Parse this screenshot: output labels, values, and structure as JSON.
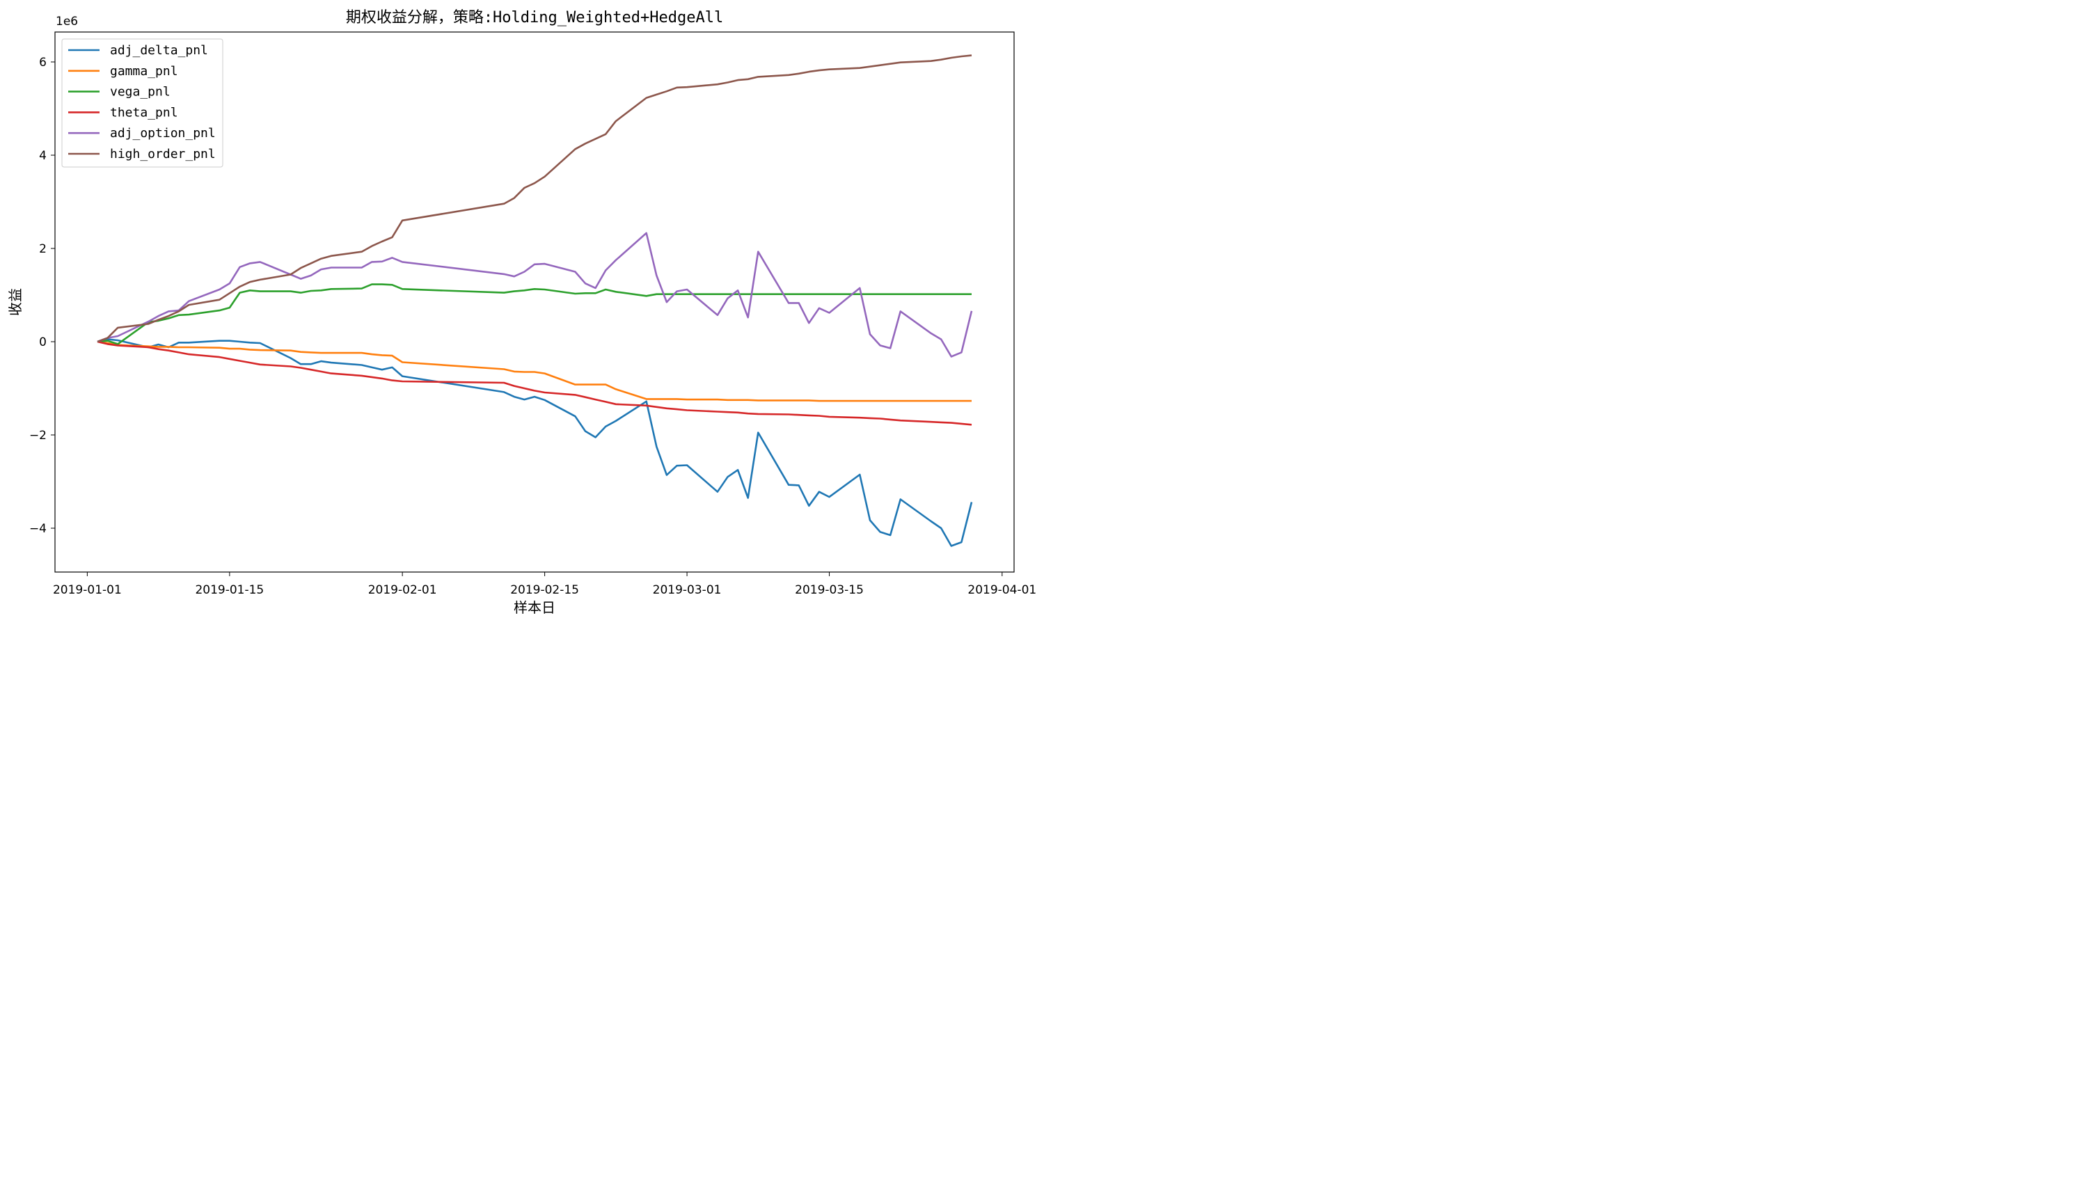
{
  "chart_data": {
    "type": "line",
    "title": "期权收益分解，策略:Holding_Weighted+HedgeAll",
    "xlabel": "样本日",
    "ylabel": "收益",
    "y_scale_label": "1e6",
    "xlim": [
      "2019-01-01",
      "2019-04-01"
    ],
    "ylim": [
      -4.9,
      6.6
    ],
    "x_ticks": [
      "2019-01-01",
      "2019-01-15",
      "2019-02-01",
      "2019-02-15",
      "2019-03-01",
      "2019-03-15",
      "2019-04-01"
    ],
    "y_ticks": [
      6,
      4,
      2,
      0,
      -2,
      -4
    ],
    "y_tick_labels": [
      "6",
      "4",
      "2",
      "0",
      "−2",
      "−4"
    ],
    "legend_position": "top-left",
    "grid": false,
    "x": [
      "2019-01-02",
      "2019-01-03",
      "2019-01-04",
      "2019-01-07",
      "2019-01-08",
      "2019-01-09",
      "2019-01-10",
      "2019-01-11",
      "2019-01-14",
      "2019-01-15",
      "2019-01-16",
      "2019-01-17",
      "2019-01-18",
      "2019-01-21",
      "2019-01-22",
      "2019-01-23",
      "2019-01-24",
      "2019-01-25",
      "2019-01-28",
      "2019-01-29",
      "2019-01-30",
      "2019-01-31",
      "2019-02-01",
      "2019-02-11",
      "2019-02-12",
      "2019-02-13",
      "2019-02-14",
      "2019-02-15",
      "2019-02-18",
      "2019-02-19",
      "2019-02-20",
      "2019-02-21",
      "2019-02-22",
      "2019-02-25",
      "2019-02-26",
      "2019-02-27",
      "2019-02-28",
      "2019-03-01",
      "2019-03-04",
      "2019-03-05",
      "2019-03-06",
      "2019-03-07",
      "2019-03-08",
      "2019-03-11",
      "2019-03-12",
      "2019-03-13",
      "2019-03-14",
      "2019-03-15",
      "2019-03-18",
      "2019-03-19",
      "2019-03-20",
      "2019-03-21",
      "2019-03-22",
      "2019-03-25",
      "2019-03-26",
      "2019-03-27",
      "2019-03-28",
      "2019-03-29"
    ],
    "series": [
      {
        "name": "adj_delta_pnl",
        "color": "#1f77b4",
        "values": [
          0,
          0.05,
          0.03,
          -0.12,
          -0.06,
          -0.12,
          -0.02,
          -0.02,
          0.02,
          0.02,
          0.0,
          -0.02,
          -0.03,
          -0.35,
          -0.48,
          -0.48,
          -0.42,
          -0.45,
          -0.5,
          -0.55,
          -0.6,
          -0.55,
          -0.74,
          -1.08,
          -1.18,
          -1.24,
          -1.18,
          -1.25,
          -1.6,
          -1.92,
          -2.05,
          -1.82,
          -1.7,
          -1.28,
          -2.25,
          -2.86,
          -2.66,
          -2.65,
          -3.22,
          -2.9,
          -2.75,
          -3.35,
          -1.95,
          -3.07,
          -3.08,
          -3.52,
          -3.22,
          -3.33,
          -2.85,
          -3.83,
          -4.08,
          -4.15,
          -3.38,
          -3.85,
          -4.0,
          -4.38,
          -4.3,
          -3.44
        ]
      },
      {
        "name": "gamma_pnl",
        "color": "#ff7f0e",
        "values": [
          0,
          -0.03,
          -0.07,
          -0.1,
          -0.11,
          -0.11,
          -0.12,
          -0.12,
          -0.13,
          -0.15,
          -0.15,
          -0.17,
          -0.18,
          -0.19,
          -0.22,
          -0.23,
          -0.24,
          -0.24,
          -0.24,
          -0.27,
          -0.29,
          -0.3,
          -0.44,
          -0.59,
          -0.64,
          -0.65,
          -0.65,
          -0.68,
          -0.92,
          -0.92,
          -0.92,
          -0.92,
          -1.02,
          -1.23,
          -1.23,
          -1.23,
          -1.23,
          -1.24,
          -1.24,
          -1.25,
          -1.25,
          -1.25,
          -1.26,
          -1.26,
          -1.26,
          -1.26,
          -1.27,
          -1.27,
          -1.27,
          -1.27,
          -1.27,
          -1.27,
          -1.27,
          -1.27,
          -1.27,
          -1.27,
          -1.27,
          -1.27
        ]
      },
      {
        "name": "vega_pnl",
        "color": "#2ca02c",
        "values": [
          0,
          0.02,
          -0.05,
          0.42,
          0.45,
          0.5,
          0.57,
          0.58,
          0.67,
          0.73,
          1.05,
          1.1,
          1.08,
          1.08,
          1.05,
          1.09,
          1.1,
          1.13,
          1.14,
          1.23,
          1.23,
          1.22,
          1.13,
          1.05,
          1.08,
          1.1,
          1.13,
          1.12,
          1.03,
          1.04,
          1.04,
          1.12,
          1.07,
          0.98,
          1.02,
          1.02,
          1.02,
          1.02,
          1.02,
          1.02,
          1.02,
          1.02,
          1.02,
          1.02,
          1.02,
          1.02,
          1.02,
          1.02,
          1.02,
          1.02,
          1.02,
          1.02,
          1.02,
          1.02,
          1.02,
          1.02,
          1.02,
          1.02
        ]
      },
      {
        "name": "theta_pnl",
        "color": "#d62728",
        "values": [
          0,
          -0.05,
          -0.08,
          -0.12,
          -0.16,
          -0.19,
          -0.23,
          -0.27,
          -0.33,
          -0.37,
          -0.41,
          -0.45,
          -0.49,
          -0.53,
          -0.56,
          -0.6,
          -0.64,
          -0.68,
          -0.73,
          -0.76,
          -0.79,
          -0.83,
          -0.85,
          -0.88,
          -0.95,
          -1.0,
          -1.05,
          -1.09,
          -1.14,
          -1.19,
          -1.24,
          -1.29,
          -1.34,
          -1.37,
          -1.4,
          -1.43,
          -1.45,
          -1.47,
          -1.5,
          -1.51,
          -1.52,
          -1.54,
          -1.55,
          -1.56,
          -1.57,
          -1.58,
          -1.59,
          -1.61,
          -1.63,
          -1.64,
          -1.65,
          -1.67,
          -1.69,
          -1.72,
          -1.73,
          -1.74,
          -1.76,
          -1.78
        ]
      },
      {
        "name": "adj_option_pnl",
        "color": "#9467bd",
        "values": [
          0,
          0.08,
          0.12,
          0.43,
          0.55,
          0.65,
          0.67,
          0.87,
          1.12,
          1.25,
          1.6,
          1.68,
          1.71,
          1.44,
          1.35,
          1.42,
          1.55,
          1.59,
          1.59,
          1.71,
          1.72,
          1.8,
          1.71,
          1.45,
          1.4,
          1.5,
          1.66,
          1.67,
          1.5,
          1.25,
          1.15,
          1.53,
          1.75,
          2.33,
          1.42,
          0.85,
          1.08,
          1.12,
          0.57,
          0.93,
          1.1,
          0.52,
          1.93,
          0.83,
          0.83,
          0.4,
          0.72,
          0.62,
          1.15,
          0.16,
          -0.08,
          -0.14,
          0.65,
          0.18,
          0.05,
          -0.32,
          -0.23,
          0.66
        ]
      },
      {
        "name": "high_order_pnl",
        "color": "#8c564b",
        "values": [
          0,
          0.08,
          0.3,
          0.38,
          0.47,
          0.55,
          0.65,
          0.79,
          0.9,
          1.04,
          1.18,
          1.28,
          1.33,
          1.44,
          1.58,
          1.68,
          1.78,
          1.84,
          1.93,
          2.05,
          2.15,
          2.24,
          2.6,
          2.96,
          3.08,
          3.3,
          3.4,
          3.54,
          4.13,
          4.25,
          4.35,
          4.45,
          4.73,
          5.23,
          5.3,
          5.37,
          5.45,
          5.46,
          5.52,
          5.56,
          5.61,
          5.63,
          5.68,
          5.72,
          5.75,
          5.79,
          5.82,
          5.84,
          5.87,
          5.9,
          5.93,
          5.96,
          5.99,
          6.02,
          6.05,
          6.09,
          6.12,
          6.14
        ]
      }
    ]
  }
}
